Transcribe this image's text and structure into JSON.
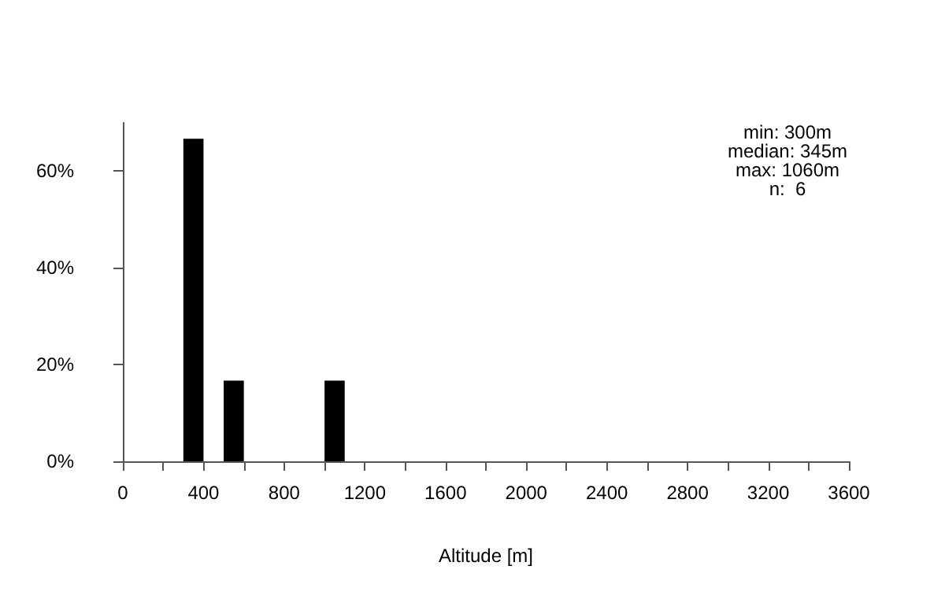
{
  "chart_data": {
    "type": "histogram",
    "xlabel": "Altitude [m]",
    "bins": [
      300,
      400,
      500,
      600,
      700,
      800,
      900,
      1000,
      1100
    ],
    "values": [
      66.7,
      0,
      16.7,
      0,
      0,
      0,
      0,
      16.7
    ],
    "color": "#000000",
    "xlim": [
      0,
      3600
    ],
    "xticks": [
      0,
      {
        "value": 200,
        "label": null
      },
      400,
      {
        "value": 600,
        "label": null
      },
      800,
      {
        "value": 1000,
        "label": null
      },
      1200,
      {
        "value": 1400,
        "label": null
      },
      1600,
      {
        "value": 1800,
        "label": null
      },
      2000,
      {
        "value": 2200,
        "label": null
      },
      2400,
      {
        "value": 2600,
        "label": null
      },
      2800,
      {
        "value": 3000,
        "label": null
      },
      3200,
      {
        "value": 3400,
        "label": null
      },
      3600
    ],
    "ylim": [
      0,
      70
    ],
    "yticks": [
      {
        "value": 0,
        "label": "0%"
      },
      {
        "value": 20,
        "label": "20%"
      },
      {
        "value": 40,
        "label": "40%"
      },
      {
        "value": 60,
        "label": "60%"
      }
    ],
    "annotations": [
      "min: 300m",
      "median: 345m",
      "max: 1060m",
      "n:  6"
    ]
  }
}
